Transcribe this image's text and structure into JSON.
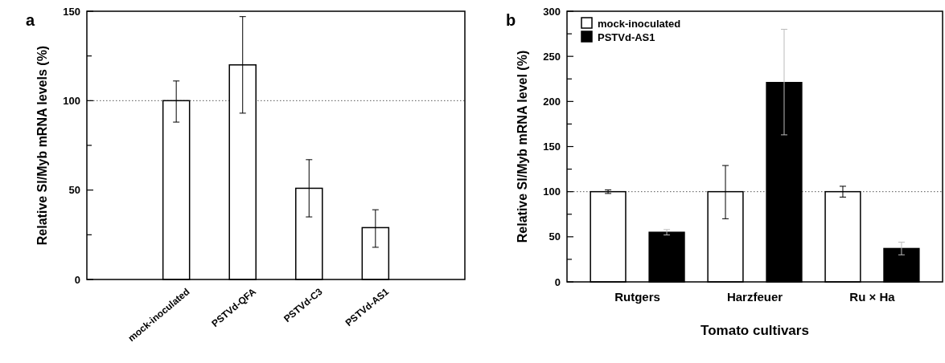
{
  "chart_data": [
    {
      "type": "bar",
      "title": "a",
      "ylabel": "Relative Sl/Myb mRNA levels (%)",
      "categories": [
        "mock-inoculated",
        "PSTVd-QFA",
        "PSTVd-C3",
        "PSTVd-AS1"
      ],
      "series": [
        {
          "color": "#ffffff",
          "values": [
            100,
            120,
            51,
            29
          ],
          "errors": [
            [
              88,
              111
            ],
            [
              93,
              147
            ],
            [
              35,
              67
            ],
            [
              18,
              39
            ]
          ]
        }
      ],
      "ylim": [
        0,
        150
      ],
      "yticks": [
        0,
        {
          "value": 25,
          "label": null
        },
        50,
        {
          "value": 75,
          "label": null
        },
        100,
        {
          "value": 125,
          "label": null
        },
        150
      ],
      "ref_lines": [
        {
          "axis": "y",
          "value": 100,
          "line_style": "dotted"
        }
      ],
      "legend": false
    },
    {
      "type": "bar",
      "title": "b",
      "ylabel": "Relative Sl/Myb mRNA level (%)",
      "xlabel": "Tomato cultivars",
      "categories": [
        "Rutgers",
        "Harzfeuer",
        "Ru × Ha"
      ],
      "series": [
        {
          "name": "mock-inoculated",
          "color": "#ffffff",
          "values": [
            100,
            100,
            100
          ],
          "errors": [
            [
              98,
              102
            ],
            [
              70,
              129
            ],
            [
              94,
              106
            ]
          ]
        },
        {
          "name": "PSTVd-AS1",
          "color": "#000000",
          "values": [
            55,
            221,
            37
          ],
          "errors": [
            [
              52,
              58
            ],
            [
              163,
              280
            ],
            [
              30,
              44
            ]
          ]
        }
      ],
      "ylim": [
        0,
        300
      ],
      "yticks": [
        0,
        {
          "value": 25,
          "label": null
        },
        50,
        {
          "value": 75,
          "label": null
        },
        100,
        {
          "value": 125,
          "label": null
        },
        150,
        {
          "value": 175,
          "label": null
        },
        200,
        {
          "value": 225,
          "label": null
        },
        250,
        {
          "value": 275,
          "label": null
        },
        300
      ],
      "ref_lines": [
        {
          "axis": "y",
          "value": 100,
          "line_style": "dotted"
        }
      ],
      "legend": "top left"
    }
  ]
}
